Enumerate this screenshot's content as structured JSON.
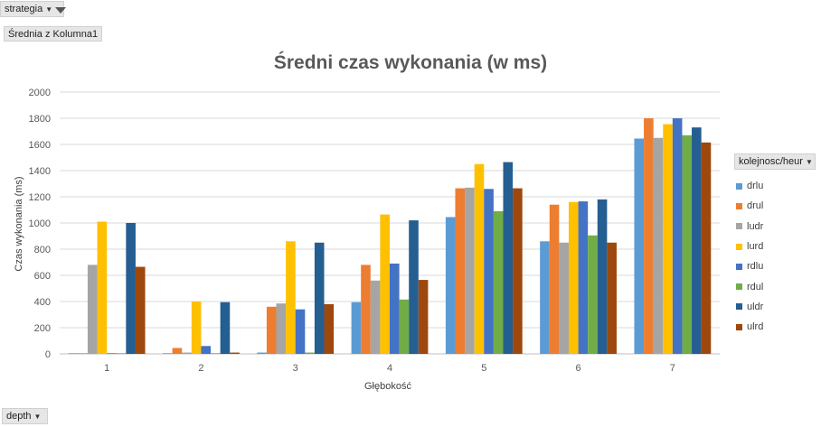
{
  "filters": {
    "strategia_label": "strategia",
    "values_label": "Średnia z Kolumna1",
    "depth_label": "depth",
    "legend_field_label": "kolejnosc/heur"
  },
  "chart_data": {
    "type": "bar",
    "title": "Średni czas wykonania (w ms)",
    "xlabel": "Głębokość",
    "ylabel": "Czas wykonania (ms)",
    "categories": [
      "1",
      "2",
      "3",
      "4",
      "5",
      "6",
      "7"
    ],
    "ylim": [
      0,
      2000
    ],
    "yticks": [
      0,
      200,
      400,
      600,
      800,
      1000,
      1200,
      1400,
      1600,
      1800,
      2000
    ],
    "grid": true,
    "legend_position": "right",
    "series": [
      {
        "name": "drlu",
        "color": "#5b9bd5",
        "values": [
          5,
          5,
          10,
          395,
          1045,
          860,
          1645
        ]
      },
      {
        "name": "drul",
        "color": "#ed7d31",
        "values": [
          5,
          45,
          360,
          680,
          1265,
          1140,
          1800
        ]
      },
      {
        "name": "ludr",
        "color": "#a5a5a5",
        "values": [
          680,
          10,
          385,
          560,
          1270,
          850,
          1650
        ]
      },
      {
        "name": "lurd",
        "color": "#ffc000",
        "values": [
          1010,
          400,
          860,
          1065,
          1450,
          1160,
          1755
        ]
      },
      {
        "name": "rdlu",
        "color": "#4472c4",
        "values": [
          5,
          60,
          340,
          690,
          1260,
          1165,
          1800
        ]
      },
      {
        "name": "rdul",
        "color": "#70ad47",
        "values": [
          5,
          5,
          10,
          415,
          1090,
          905,
          1670
        ]
      },
      {
        "name": "uldr",
        "color": "#255e91",
        "values": [
          1000,
          395,
          850,
          1020,
          1465,
          1180,
          1730
        ]
      },
      {
        "name": "ulrd",
        "color": "#9e480e",
        "values": [
          665,
          10,
          380,
          565,
          1265,
          850,
          1615
        ]
      }
    ]
  }
}
